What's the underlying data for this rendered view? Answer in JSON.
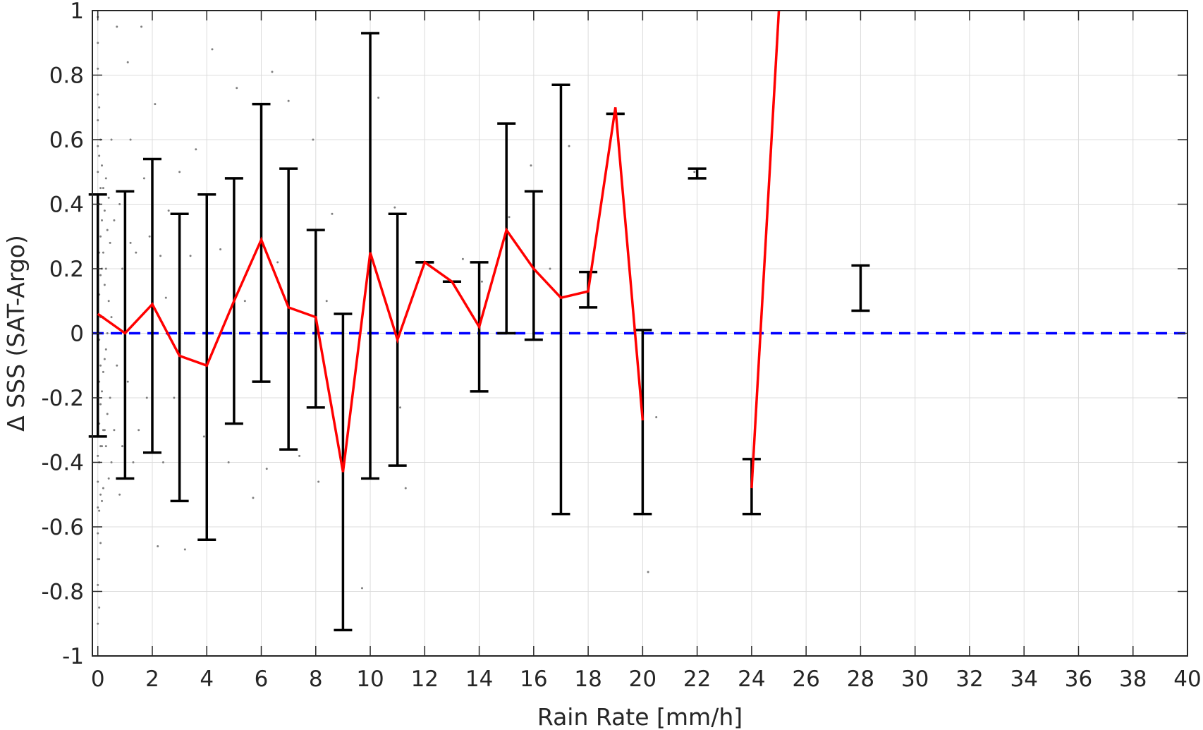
{
  "chart_data": {
    "type": "line",
    "xlabel": "Rain Rate [mm/h]",
    "ylabel": "Δ SSS (SAT-Argo)",
    "xlim": [
      -0.2,
      40
    ],
    "ylim": [
      -1,
      1
    ],
    "grid": true,
    "x_ticks": [
      0,
      2,
      4,
      6,
      8,
      10,
      12,
      14,
      16,
      18,
      20,
      22,
      24,
      26,
      28,
      30,
      32,
      34,
      36,
      38,
      40
    ],
    "x_tick_labels": [
      "0",
      "2",
      "4",
      "6",
      "8",
      "10",
      "12",
      "14",
      "16",
      "18",
      "20",
      "22",
      "24",
      "26",
      "28",
      "30",
      "32",
      "34",
      "36",
      "38",
      "40"
    ],
    "y_ticks": [
      -1,
      -0.8,
      -0.6,
      -0.4,
      -0.2,
      0,
      0.2,
      0.4,
      0.6,
      0.8,
      1
    ],
    "y_tick_labels": [
      "-1",
      "-0.8",
      "-0.6",
      "-0.4",
      "-0.2",
      "0",
      "0.2",
      "0.4",
      "0.6",
      "0.8",
      "1"
    ],
    "colors": {
      "mean_line": "#ff0000",
      "error_bars": "#000000",
      "zero_line": "#0000ff",
      "scatter": "#7f7f7f",
      "grid": "#dcdcdc",
      "axes": "#262626"
    },
    "series": [
      {
        "type": "line",
        "x": [
          0,
          1,
          2,
          3,
          4,
          5,
          6,
          7,
          8,
          9,
          10,
          11,
          12,
          13,
          14,
          15,
          16,
          17,
          18,
          19,
          20
        ],
        "y": [
          0.06,
          0.0,
          0.09,
          -0.07,
          -0.1,
          0.1,
          0.29,
          0.08,
          0.05,
          -0.43,
          0.25,
          -0.02,
          0.22,
          0.16,
          0.02,
          0.32,
          0.2,
          0.11,
          0.13,
          0.7,
          -0.27
        ]
      },
      {
        "type": "line",
        "x": [
          24,
          25
        ],
        "y": [
          -0.48,
          1.0
        ]
      },
      {
        "type": "errorbar",
        "x": [
          0,
          1,
          2,
          3,
          4,
          5,
          6,
          7,
          8,
          9,
          10,
          11,
          12,
          13,
          14,
          15,
          16,
          17,
          18,
          19,
          20,
          22,
          24,
          28
        ],
        "lower": [
          -0.32,
          -0.45,
          -0.37,
          -0.52,
          -0.64,
          -0.28,
          -0.15,
          -0.36,
          -0.23,
          -0.92,
          -0.45,
          -0.41,
          0.22,
          0.16,
          -0.18,
          0.0,
          -0.02,
          -0.56,
          0.08,
          0.68,
          -0.56,
          0.48,
          -0.56,
          0.07
        ],
        "upper": [
          0.43,
          0.44,
          0.54,
          0.37,
          0.43,
          0.48,
          0.71,
          0.51,
          0.32,
          0.06,
          0.93,
          0.37,
          0.22,
          0.16,
          0.22,
          0.65,
          0.44,
          0.77,
          0.19,
          0.68,
          0.01,
          0.51,
          -0.39,
          0.21
        ]
      },
      {
        "type": "reference",
        "y": 0
      },
      {
        "type": "scatter",
        "x": [
          0.0,
          0.0,
          0.0,
          0.0,
          0.0,
          0.0,
          0.0,
          0.0,
          0.0,
          0.0,
          0.0,
          0.0,
          0.0,
          0.0,
          0.0,
          0.0,
          0.0,
          0.0,
          0.0,
          0.0,
          0.0,
          0.0,
          0.0,
          0.0,
          0.05,
          0.05,
          0.05,
          0.05,
          0.05,
          0.05,
          0.05,
          0.05,
          0.05,
          0.05,
          0.05,
          0.05,
          0.1,
          0.1,
          0.1,
          0.1,
          0.1,
          0.1,
          0.1,
          0.1,
          0.1,
          0.1,
          0.15,
          0.15,
          0.15,
          0.15,
          0.15,
          0.15,
          0.15,
          0.2,
          0.2,
          0.2,
          0.2,
          0.2,
          0.2,
          0.25,
          0.25,
          0.25,
          0.25,
          0.3,
          0.3,
          0.3,
          0.3,
          0.35,
          0.35,
          0.35,
          0.4,
          0.4,
          0.4,
          0.45,
          0.45,
          0.5,
          0.5,
          0.5,
          0.6,
          0.6,
          0.7,
          0.7,
          0.8,
          0.8,
          0.9,
          0.9,
          1.0,
          1.0,
          1.1,
          1.1,
          1.2,
          1.2,
          1.3,
          1.4,
          1.5,
          1.6,
          1.7,
          1.8,
          1.9,
          2.0,
          2.1,
          2.2,
          2.3,
          2.4,
          2.5,
          2.6,
          2.8,
          3.0,
          3.2,
          3.4,
          3.6,
          3.9,
          4.2,
          4.5,
          4.8,
          5.1,
          5.4,
          5.7,
          6.2,
          6.4,
          6.6,
          7.0,
          7.4,
          7.9,
          8.1,
          8.4,
          8.6,
          9.7,
          10.3,
          10.9,
          11.1,
          11.3,
          13.4,
          14.1,
          15.1,
          15.9,
          16.6,
          17.3,
          20.2,
          20.5,
          21.9,
          28.0
        ],
        "y": [
          0.98,
          0.9,
          0.82,
          0.74,
          0.66,
          0.58,
          0.5,
          0.42,
          0.34,
          0.26,
          0.18,
          0.1,
          0.02,
          -0.06,
          -0.14,
          -0.22,
          -0.3,
          -0.38,
          -0.46,
          -0.54,
          -0.62,
          -0.7,
          -0.78,
          -0.9,
          0.7,
          0.55,
          0.4,
          0.25,
          0.12,
          -0.02,
          -0.15,
          -0.28,
          -0.4,
          -0.55,
          -0.7,
          -0.85,
          0.6,
          0.45,
          0.3,
          0.18,
          0.05,
          -0.1,
          -0.22,
          -0.35,
          -0.5,
          -0.65,
          0.52,
          0.35,
          0.2,
          0.0,
          -0.18,
          -0.35,
          -0.52,
          0.45,
          0.25,
          0.05,
          -0.12,
          -0.3,
          -0.48,
          0.38,
          0.15,
          -0.08,
          -0.3,
          0.48,
          0.2,
          -0.05,
          -0.35,
          0.32,
          0.0,
          -0.25,
          0.42,
          0.1,
          -0.45,
          0.28,
          -0.2,
          0.6,
          0.05,
          -0.4,
          0.35,
          -0.3,
          0.95,
          -0.1,
          0.4,
          -0.5,
          0.2,
          -0.35,
          0.32,
          -0.25,
          0.84,
          -0.15,
          0.6,
          0.28,
          -0.4,
          0.25,
          -0.3,
          0.95,
          0.48,
          -0.2,
          0.3,
          -0.25,
          0.71,
          -0.66,
          0.24,
          -0.4,
          0.11,
          0.38,
          -0.2,
          0.5,
          -0.67,
          0.24,
          0.57,
          -0.32,
          0.88,
          0.26,
          -0.4,
          0.76,
          0.1,
          -0.51,
          -0.42,
          0.81,
          0.22,
          0.72,
          -0.38,
          0.6,
          -0.46,
          0.1,
          0.37,
          -0.79,
          0.73,
          0.39,
          -0.23,
          -0.48,
          0.23,
          0.16,
          0.36,
          0.52,
          0.2,
          0.58,
          -0.74,
          -0.26,
          0.5,
          0.2
        ]
      }
    ]
  }
}
